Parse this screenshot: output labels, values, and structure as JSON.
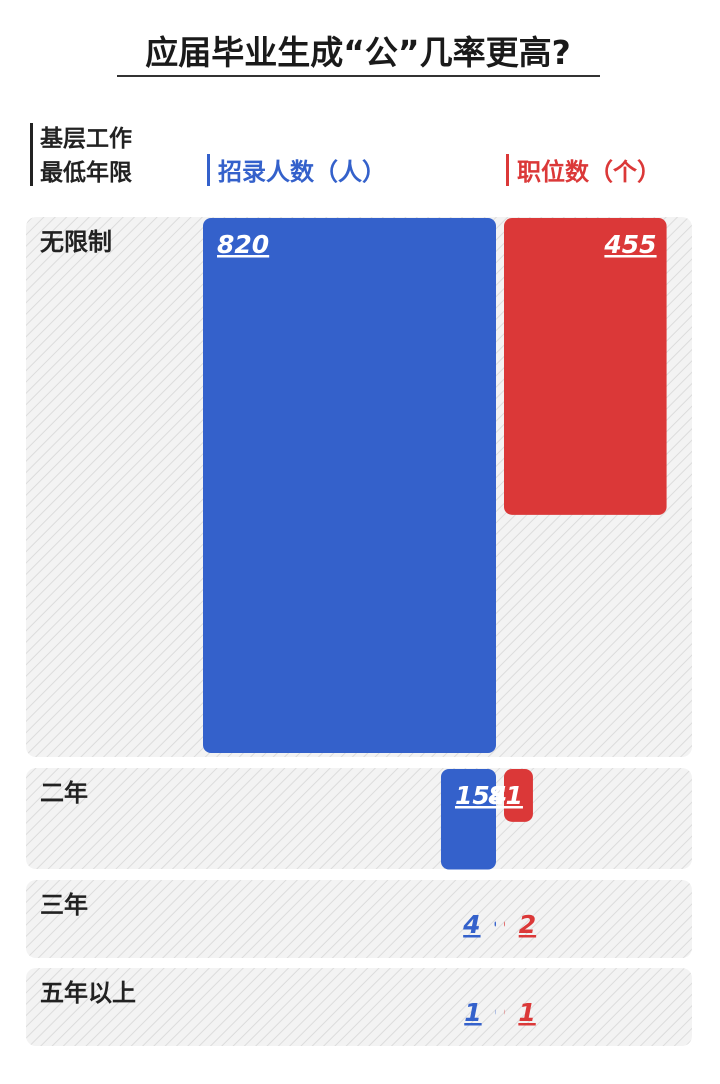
{
  "title": "应届毕业生成“公”几率更高?",
  "row_header": [
    "基层工作",
    "最低年限"
  ],
  "colors": {
    "blue": "#3461CB",
    "red": "#DB3838",
    "text": "#222222",
    "hatch_bg": "#F3F3F3",
    "hatch_line": "#DCDCDC"
  },
  "chart_data": {
    "type": "bar",
    "categories": [
      "无限制",
      "二年",
      "三年",
      "五年以上"
    ],
    "series": [
      {
        "name": "招录人数（人）",
        "values": [
          820,
          154,
          4,
          1
        ]
      },
      {
        "name": "职位数（个）",
        "values": [
          455,
          81,
          2,
          1
        ]
      }
    ],
    "legend": "top"
  }
}
